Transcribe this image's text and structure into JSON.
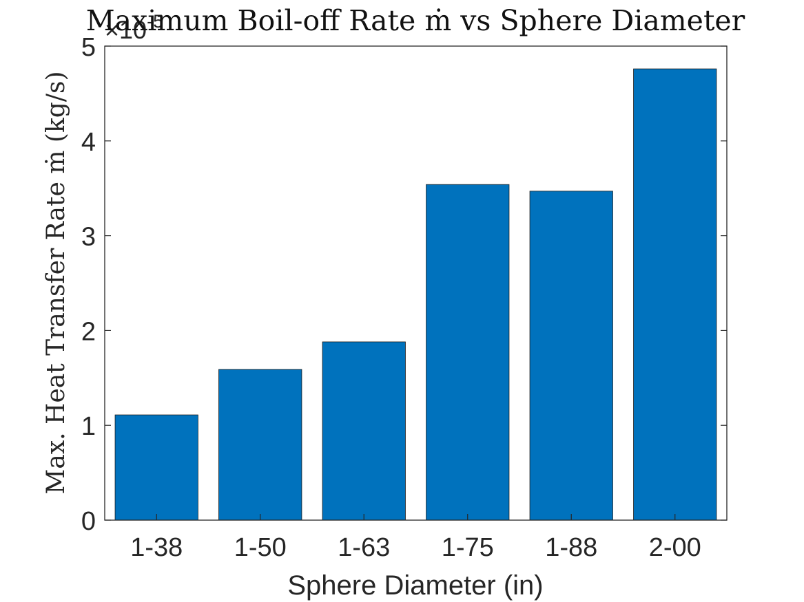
{
  "chart_data": {
    "type": "bar",
    "title": "Maximum Boil-off Rate ṁ vs Sphere Diameter",
    "xlabel": "Sphere Diameter (in)",
    "ylabel": "Max. Heat Transfer Rate ṁ (kg/s)",
    "y_exponent_label": "×10",
    "y_exponent_power": "-5",
    "categories": [
      "1-38",
      "1-50",
      "1-63",
      "1-75",
      "1-88",
      "2-00"
    ],
    "values": [
      1.11,
      1.59,
      1.88,
      3.54,
      3.47,
      4.76
    ],
    "value_multiplier": 1e-05,
    "ylim": [
      0,
      5
    ],
    "yticks": [
      "0",
      "1",
      "2",
      "3",
      "4",
      "5"
    ],
    "grid": false,
    "legend": "none",
    "bar_color": "#0072BD"
  }
}
